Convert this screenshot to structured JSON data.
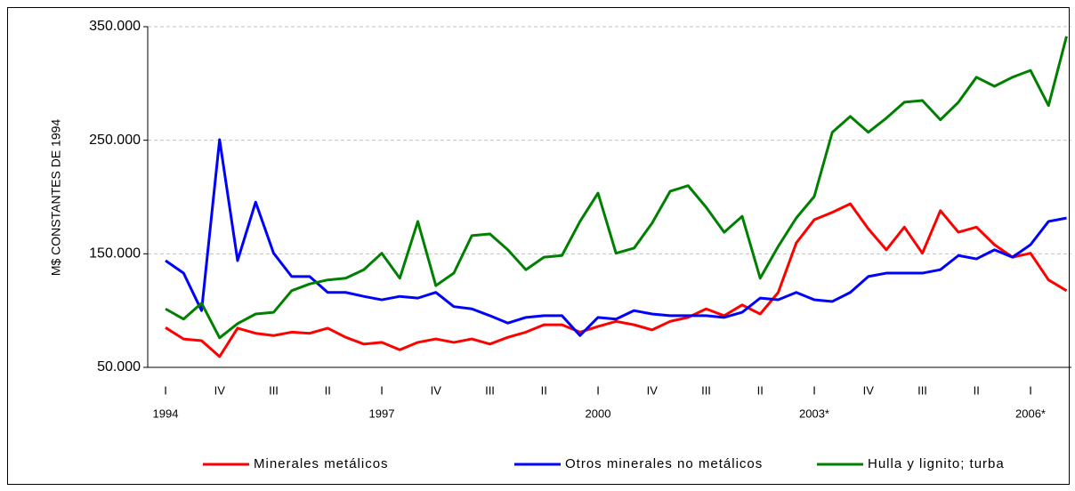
{
  "chart_data": {
    "type": "line",
    "y_axis_label": "M$ CONSTANTES DE 1994",
    "categories": [
      "I",
      null,
      null,
      "IV",
      null,
      null,
      "III",
      null,
      null,
      "II",
      null,
      null,
      "I",
      null,
      null,
      "IV",
      null,
      null,
      "III",
      null,
      null,
      "II",
      null,
      null,
      "I",
      null,
      null,
      "IV",
      null,
      null,
      "III",
      null,
      null,
      "II",
      null,
      null,
      "I",
      null,
      null,
      "IV",
      null,
      null,
      "III",
      null,
      null,
      "II",
      null,
      null,
      "I",
      null,
      null
    ],
    "years": [
      "1994",
      null,
      null,
      null,
      null,
      null,
      null,
      null,
      null,
      null,
      null,
      null,
      "1997",
      null,
      null,
      null,
      null,
      null,
      null,
      null,
      null,
      null,
      null,
      null,
      "2000",
      null,
      null,
      null,
      null,
      null,
      null,
      null,
      null,
      null,
      null,
      null,
      "2003*",
      null,
      null,
      null,
      null,
      null,
      null,
      null,
      null,
      null,
      null,
      null,
      "2006*",
      null,
      null
    ],
    "series": [
      {
        "name": "Minerales metálicos",
        "color": "#ff0000",
        "values": [
          85000,
          75000,
          73500,
          59500,
          84500,
          80000,
          78000,
          81000,
          80000,
          84500,
          76500,
          70500,
          72000,
          65500,
          72000,
          75000,
          72000,
          75000,
          70500,
          76500,
          81000,
          87500,
          87500,
          81000,
          86000,
          90500,
          87500,
          83000,
          90500,
          94000,
          101500,
          95500,
          105000,
          97000,
          116000,
          159500,
          180000,
          186500,
          194000,
          172000,
          153500,
          173500,
          150500,
          188000,
          169000,
          173500,
          158000,
          147000,
          150500,
          127000,
          117500
        ]
      },
      {
        "name": "Otros minerales no metálicos",
        "color": "#0000ff",
        "values": [
          144000,
          133000,
          100000,
          250500,
          144000,
          195500,
          150500,
          130000,
          130000,
          116000,
          116000,
          112500,
          109500,
          112500,
          111000,
          116000,
          103500,
          101500,
          95500,
          89000,
          94000,
          95500,
          95500,
          78000,
          94000,
          92500,
          100000,
          97000,
          95500,
          95500,
          95500,
          94000,
          98500,
          111000,
          109500,
          116000,
          109500,
          108000,
          116000,
          130000,
          133000,
          133000,
          133000,
          136000,
          148500,
          145500,
          153500,
          147000,
          158000,
          178500,
          181500
        ]
      },
      {
        "name": "Hulla y lignito; turba",
        "color": "#008000",
        "values": [
          101500,
          92500,
          106500,
          76000,
          88500,
          97000,
          98500,
          117500,
          123500,
          127000,
          128500,
          136000,
          150500,
          128500,
          178500,
          122000,
          133000,
          166000,
          167500,
          153500,
          136000,
          147000,
          148500,
          178500,
          203500,
          150500,
          155000,
          177000,
          205000,
          210000,
          191000,
          169000,
          183000,
          128500,
          156500,
          181500,
          200500,
          257000,
          271000,
          257000,
          269500,
          283500,
          285000,
          268000,
          283500,
          305500,
          297500,
          305500,
          311500,
          280500,
          341500
        ]
      }
    ],
    "ylim": [
      50000,
      350000
    ],
    "yticks": [
      {
        "value": 50000,
        "label": "50.000"
      },
      {
        "value": 150000,
        "label": "150.000"
      },
      {
        "value": 250000,
        "label": "250.000"
      },
      {
        "value": 350000,
        "label": "350.000"
      }
    ],
    "grid": true,
    "legend": "bottom"
  }
}
